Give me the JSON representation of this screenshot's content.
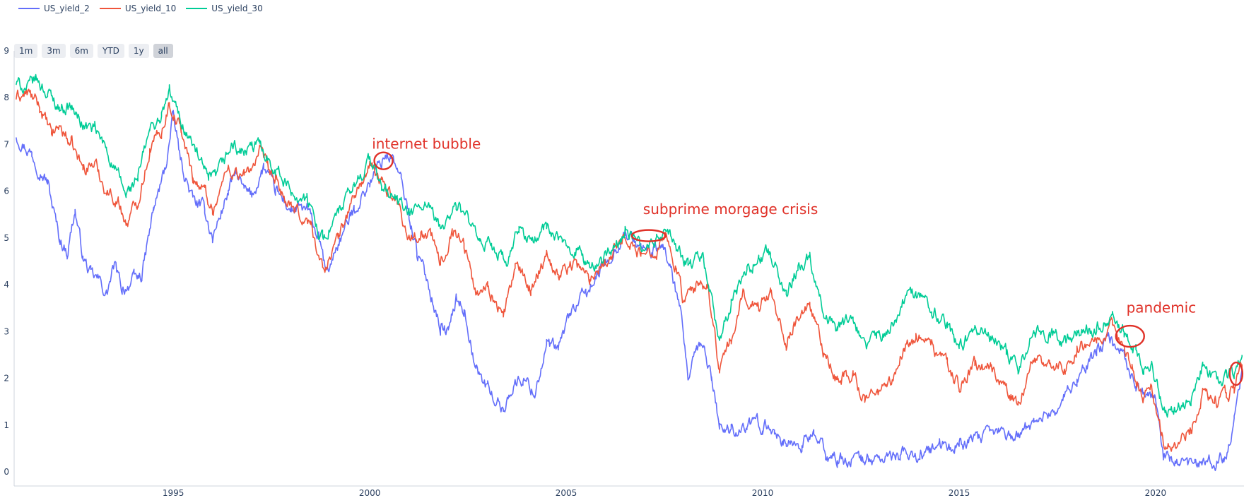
{
  "legend": [
    {
      "label": "US_yield_2",
      "color": "#636efa"
    },
    {
      "label": "US_yield_10",
      "color": "#ef553b"
    },
    {
      "label": "US_yield_30",
      "color": "#00cc96"
    }
  ],
  "range_buttons": [
    {
      "label": "1m",
      "active": false
    },
    {
      "label": "3m",
      "active": false
    },
    {
      "label": "6m",
      "active": false
    },
    {
      "label": "YTD",
      "active": false
    },
    {
      "label": "1y",
      "active": false
    },
    {
      "label": "all",
      "active": true
    }
  ],
  "chart_data": {
    "type": "line",
    "title": "",
    "xlabel": "",
    "ylabel": "",
    "xlim": [
      1990.95,
      2022.25
    ],
    "ylim": [
      -0.3,
      9.0
    ],
    "xticks": [
      1995,
      2000,
      2005,
      2010,
      2015,
      2020
    ],
    "yticks": [
      0,
      1,
      2,
      3,
      4,
      5,
      6,
      7,
      8,
      9
    ],
    "grid": false,
    "legend_position": "top-left",
    "series": [
      {
        "name": "US_yield_2",
        "color": "#636efa",
        "points": [
          [
            1991.0,
            7.2
          ],
          [
            1991.4,
            6.8
          ],
          [
            1991.8,
            6.2
          ],
          [
            1992.1,
            5.0
          ],
          [
            1992.3,
            4.7
          ],
          [
            1992.5,
            5.6
          ],
          [
            1992.7,
            4.6
          ],
          [
            1992.9,
            4.2
          ],
          [
            1993.1,
            4.1
          ],
          [
            1993.3,
            3.8
          ],
          [
            1993.5,
            4.4
          ],
          [
            1993.7,
            3.9
          ],
          [
            1994.0,
            4.1
          ],
          [
            1994.2,
            4.2
          ],
          [
            1994.5,
            5.6
          ],
          [
            1994.8,
            6.5
          ],
          [
            1995.0,
            7.6
          ],
          [
            1995.2,
            6.6
          ],
          [
            1995.5,
            5.8
          ],
          [
            1995.8,
            5.6
          ],
          [
            1996.0,
            5.0
          ],
          [
            1996.4,
            6.0
          ],
          [
            1996.6,
            6.4
          ],
          [
            1996.8,
            6.0
          ],
          [
            1997.0,
            5.9
          ],
          [
            1997.3,
            6.5
          ],
          [
            1997.6,
            6.0
          ],
          [
            1998.0,
            5.6
          ],
          [
            1998.4,
            5.6
          ],
          [
            1998.7,
            5.0
          ],
          [
            1998.9,
            4.2
          ],
          [
            1999.2,
            4.9
          ],
          [
            1999.6,
            5.6
          ],
          [
            2000.0,
            6.2
          ],
          [
            2000.4,
            6.8
          ],
          [
            2000.6,
            6.7
          ],
          [
            2000.8,
            6.2
          ],
          [
            2001.0,
            5.5
          ],
          [
            2001.2,
            4.7
          ],
          [
            2001.5,
            4.0
          ],
          [
            2001.8,
            3.1
          ],
          [
            2002.0,
            3.0
          ],
          [
            2002.2,
            3.7
          ],
          [
            2002.4,
            3.5
          ],
          [
            2002.7,
            2.2
          ],
          [
            2003.0,
            1.8
          ],
          [
            2003.4,
            1.3
          ],
          [
            2003.6,
            1.8
          ],
          [
            2003.9,
            2.0
          ],
          [
            2004.2,
            1.7
          ],
          [
            2004.5,
            2.7
          ],
          [
            2004.8,
            2.6
          ],
          [
            2005.1,
            3.4
          ],
          [
            2005.5,
            3.8
          ],
          [
            2005.8,
            4.2
          ],
          [
            2006.1,
            4.6
          ],
          [
            2006.5,
            5.1
          ],
          [
            2006.9,
            4.8
          ],
          [
            2007.2,
            4.7
          ],
          [
            2007.5,
            4.8
          ],
          [
            2007.7,
            4.2
          ],
          [
            2007.9,
            3.4
          ],
          [
            2008.1,
            2.0
          ],
          [
            2008.3,
            2.5
          ],
          [
            2008.5,
            2.7
          ],
          [
            2008.7,
            2.0
          ],
          [
            2008.9,
            1.0
          ],
          [
            2009.2,
            0.9
          ],
          [
            2009.6,
            1.0
          ],
          [
            2010.0,
            1.0
          ],
          [
            2010.3,
            0.9
          ],
          [
            2010.6,
            0.6
          ],
          [
            2011.0,
            0.6
          ],
          [
            2011.3,
            0.8
          ],
          [
            2011.6,
            0.4
          ],
          [
            2011.9,
            0.25
          ],
          [
            2012.5,
            0.28
          ],
          [
            2013.0,
            0.27
          ],
          [
            2013.5,
            0.35
          ],
          [
            2014.0,
            0.38
          ],
          [
            2014.5,
            0.5
          ],
          [
            2015.0,
            0.6
          ],
          [
            2015.5,
            0.68
          ],
          [
            2016.0,
            0.85
          ],
          [
            2016.5,
            0.75
          ],
          [
            2016.9,
            1.1
          ],
          [
            2017.5,
            1.35
          ],
          [
            2018.0,
            2.0
          ],
          [
            2018.5,
            2.55
          ],
          [
            2018.9,
            2.85
          ],
          [
            2019.2,
            2.5
          ],
          [
            2019.5,
            1.8
          ],
          [
            2019.8,
            1.6
          ],
          [
            2020.0,
            1.5
          ],
          [
            2020.2,
            0.3
          ],
          [
            2020.6,
            0.15
          ],
          [
            2021.0,
            0.12
          ],
          [
            2021.5,
            0.2
          ],
          [
            2021.8,
            0.4
          ],
          [
            2022.0,
            1.2
          ],
          [
            2022.2,
            2.1
          ]
        ]
      },
      {
        "name": "US_yield_10",
        "color": "#ef553b",
        "points": [
          [
            1991.0,
            8.0
          ],
          [
            1991.3,
            8.1
          ],
          [
            1991.6,
            7.8
          ],
          [
            1991.9,
            7.2
          ],
          [
            1992.1,
            7.4
          ],
          [
            1992.4,
            7.0
          ],
          [
            1992.7,
            6.5
          ],
          [
            1993.0,
            6.6
          ],
          [
            1993.3,
            6.0
          ],
          [
            1993.6,
            5.8
          ],
          [
            1993.8,
            5.3
          ],
          [
            1994.1,
            5.8
          ],
          [
            1994.4,
            6.9
          ],
          [
            1994.7,
            7.3
          ],
          [
            1994.9,
            7.9
          ],
          [
            1995.2,
            7.3
          ],
          [
            1995.5,
            6.3
          ],
          [
            1995.8,
            6.0
          ],
          [
            1996.0,
            5.6
          ],
          [
            1996.4,
            6.5
          ],
          [
            1996.8,
            6.3
          ],
          [
            1997.2,
            6.8
          ],
          [
            1997.6,
            6.2
          ],
          [
            1998.0,
            5.6
          ],
          [
            1998.5,
            5.3
          ],
          [
            1998.8,
            4.3
          ],
          [
            1999.2,
            5.0
          ],
          [
            1999.6,
            5.9
          ],
          [
            2000.0,
            6.5
          ],
          [
            2000.3,
            6.2
          ],
          [
            2000.7,
            5.8
          ],
          [
            2001.0,
            5.0
          ],
          [
            2001.3,
            5.1
          ],
          [
            2001.6,
            5.0
          ],
          [
            2001.8,
            4.4
          ],
          [
            2002.1,
            5.2
          ],
          [
            2002.4,
            4.9
          ],
          [
            2002.7,
            3.8
          ],
          [
            2003.0,
            4.0
          ],
          [
            2003.4,
            3.3
          ],
          [
            2003.7,
            4.4
          ],
          [
            2004.1,
            3.9
          ],
          [
            2004.5,
            4.7
          ],
          [
            2004.8,
            4.2
          ],
          [
            2005.2,
            4.5
          ],
          [
            2005.6,
            4.1
          ],
          [
            2005.9,
            4.5
          ],
          [
            2006.2,
            4.7
          ],
          [
            2006.5,
            5.1
          ],
          [
            2006.9,
            4.6
          ],
          [
            2007.3,
            4.8
          ],
          [
            2007.5,
            5.1
          ],
          [
            2007.8,
            4.4
          ],
          [
            2008.0,
            3.6
          ],
          [
            2008.3,
            3.9
          ],
          [
            2008.6,
            4.0
          ],
          [
            2008.9,
            2.2
          ],
          [
            2009.2,
            2.8
          ],
          [
            2009.5,
            3.8
          ],
          [
            2009.9,
            3.5
          ],
          [
            2010.2,
            3.9
          ],
          [
            2010.6,
            2.8
          ],
          [
            2010.9,
            3.3
          ],
          [
            2011.2,
            3.5
          ],
          [
            2011.6,
            2.4
          ],
          [
            2011.9,
            2.0
          ],
          [
            2012.3,
            2.1
          ],
          [
            2012.6,
            1.5
          ],
          [
            2012.9,
            1.7
          ],
          [
            2013.3,
            1.9
          ],
          [
            2013.6,
            2.7
          ],
          [
            2013.9,
            2.9
          ],
          [
            2014.3,
            2.7
          ],
          [
            2014.7,
            2.3
          ],
          [
            2015.0,
            1.8
          ],
          [
            2015.4,
            2.3
          ],
          [
            2015.8,
            2.2
          ],
          [
            2016.2,
            1.8
          ],
          [
            2016.5,
            1.4
          ],
          [
            2016.9,
            2.5
          ],
          [
            2017.3,
            2.3
          ],
          [
            2017.7,
            2.2
          ],
          [
            2018.0,
            2.6
          ],
          [
            2018.5,
            2.9
          ],
          [
            2018.9,
            3.1
          ],
          [
            2019.1,
            2.7
          ],
          [
            2019.4,
            2.2
          ],
          [
            2019.7,
            1.6
          ],
          [
            2019.9,
            1.9
          ],
          [
            2020.2,
            0.7
          ],
          [
            2020.5,
            0.6
          ],
          [
            2020.9,
            0.9
          ],
          [
            2021.2,
            1.7
          ],
          [
            2021.5,
            1.4
          ],
          [
            2021.8,
            1.6
          ],
          [
            2022.0,
            1.8
          ],
          [
            2022.2,
            2.3
          ]
        ]
      },
      {
        "name": "US_yield_30",
        "color": "#00cc96",
        "points": [
          [
            1991.0,
            8.3
          ],
          [
            1991.3,
            8.2
          ],
          [
            1991.5,
            8.4
          ],
          [
            1991.8,
            8.1
          ],
          [
            1992.1,
            7.8
          ],
          [
            1992.4,
            7.8
          ],
          [
            1992.7,
            7.4
          ],
          [
            1993.0,
            7.3
          ],
          [
            1993.3,
            6.9
          ],
          [
            1993.6,
            6.3
          ],
          [
            1993.8,
            5.9
          ],
          [
            1994.1,
            6.3
          ],
          [
            1994.4,
            7.3
          ],
          [
            1994.7,
            7.6
          ],
          [
            1994.9,
            8.1
          ],
          [
            1995.2,
            7.5
          ],
          [
            1995.6,
            6.8
          ],
          [
            1995.9,
            6.2
          ],
          [
            1996.1,
            6.3
          ],
          [
            1996.5,
            7.0
          ],
          [
            1996.8,
            6.8
          ],
          [
            1997.2,
            7.0
          ],
          [
            1997.6,
            6.5
          ],
          [
            1998.0,
            6.0
          ],
          [
            1998.4,
            5.8
          ],
          [
            1998.8,
            5.0
          ],
          [
            1999.2,
            5.5
          ],
          [
            1999.6,
            6.1
          ],
          [
            2000.0,
            6.7
          ],
          [
            2000.3,
            6.1
          ],
          [
            2000.7,
            5.8
          ],
          [
            2001.0,
            5.5
          ],
          [
            2001.4,
            5.7
          ],
          [
            2001.8,
            5.2
          ],
          [
            2002.2,
            5.7
          ],
          [
            2002.5,
            5.4
          ],
          [
            2002.8,
            4.8
          ],
          [
            2003.1,
            4.9
          ],
          [
            2003.5,
            4.4
          ],
          [
            2003.8,
            5.2
          ],
          [
            2004.2,
            4.9
          ],
          [
            2004.5,
            5.3
          ],
          [
            2004.9,
            4.8
          ],
          [
            2005.3,
            4.8
          ],
          [
            2005.6,
            4.3
          ],
          [
            2005.9,
            4.6
          ],
          [
            2006.2,
            4.7
          ],
          [
            2006.5,
            5.2
          ],
          [
            2006.9,
            4.8
          ],
          [
            2007.3,
            4.9
          ],
          [
            2007.5,
            5.2
          ],
          [
            2007.8,
            4.8
          ],
          [
            2008.1,
            4.4
          ],
          [
            2008.5,
            4.6
          ],
          [
            2008.9,
            2.7
          ],
          [
            2009.2,
            3.6
          ],
          [
            2009.6,
            4.3
          ],
          [
            2009.9,
            4.6
          ],
          [
            2010.2,
            4.7
          ],
          [
            2010.6,
            3.8
          ],
          [
            2010.9,
            4.4
          ],
          [
            2011.2,
            4.6
          ],
          [
            2011.6,
            3.4
          ],
          [
            2011.9,
            3.0
          ],
          [
            2012.3,
            3.3
          ],
          [
            2012.6,
            2.6
          ],
          [
            2012.9,
            2.9
          ],
          [
            2013.3,
            3.1
          ],
          [
            2013.6,
            3.7
          ],
          [
            2013.9,
            3.9
          ],
          [
            2014.3,
            3.5
          ],
          [
            2014.7,
            3.1
          ],
          [
            2015.0,
            2.6
          ],
          [
            2015.4,
            3.1
          ],
          [
            2015.8,
            2.9
          ],
          [
            2016.2,
            2.6
          ],
          [
            2016.5,
            2.3
          ],
          [
            2016.9,
            3.0
          ],
          [
            2017.3,
            3.0
          ],
          [
            2017.7,
            2.8
          ],
          [
            2018.0,
            2.9
          ],
          [
            2018.5,
            3.1
          ],
          [
            2018.9,
            3.3
          ],
          [
            2019.2,
            3.0
          ],
          [
            2019.5,
            2.6
          ],
          [
            2019.7,
            2.1
          ],
          [
            2019.9,
            2.3
          ],
          [
            2020.2,
            1.3
          ],
          [
            2020.5,
            1.4
          ],
          [
            2020.9,
            1.6
          ],
          [
            2021.2,
            2.3
          ],
          [
            2021.5,
            2.0
          ],
          [
            2021.8,
            2.0
          ],
          [
            2022.0,
            2.1
          ],
          [
            2022.2,
            2.5
          ]
        ]
      }
    ],
    "annotations": [
      {
        "label": "internet bubble",
        "marker_x": 2000.35,
        "marker_y": 6.65,
        "text_x": 2000.2,
        "text_y": 7.0
      },
      {
        "label": "subprime morgage crisis",
        "marker_x": 2007.1,
        "marker_y": 5.05,
        "text_x": 2007.1,
        "text_y": 5.6
      },
      {
        "label": "pandemic",
        "marker_x": 2019.35,
        "marker_y": 2.9,
        "text_x": 2019.4,
        "text_y": 3.5
      },
      {
        "label": "",
        "marker_x": 2022.05,
        "marker_y": 2.1,
        "text_x": 2022.05,
        "text_y": 2.1
      }
    ]
  }
}
